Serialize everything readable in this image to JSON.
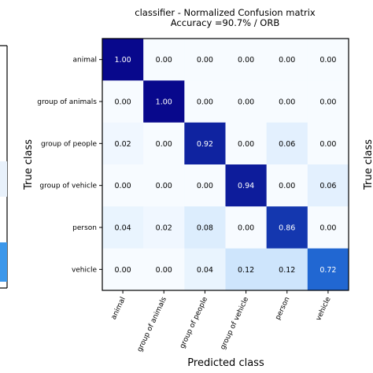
{
  "chart_data": {
    "type": "heatmap",
    "title": "classifier - Normalized Confusion matrix",
    "subtitle": "Accuracy =90.7% /  ORB",
    "xlabel": "Predicted class",
    "ylabel": "True class",
    "right_ylabel": "True class",
    "categories": [
      "animal",
      "group of animals",
      "group of people",
      "group of vehicle",
      "person",
      "vehicle"
    ],
    "matrix": [
      [
        1.0,
        0.0,
        0.0,
        0.0,
        0.0,
        0.0
      ],
      [
        0.0,
        1.0,
        0.0,
        0.0,
        0.0,
        0.0
      ],
      [
        0.02,
        0.0,
        0.92,
        0.0,
        0.06,
        0.0
      ],
      [
        0.0,
        0.0,
        0.0,
        0.94,
        0.0,
        0.06
      ],
      [
        0.04,
        0.02,
        0.08,
        0.0,
        0.86,
        0.0
      ],
      [
        0.0,
        0.0,
        0.04,
        0.12,
        0.12,
        0.72
      ]
    ],
    "value_range": [
      0,
      1
    ],
    "colormap": "Blues",
    "colors": {
      "low": "#f7fbff",
      "mid": "#2b8ff0",
      "high": "#08088c",
      "left_panel_bar": "#3c97ea"
    }
  }
}
